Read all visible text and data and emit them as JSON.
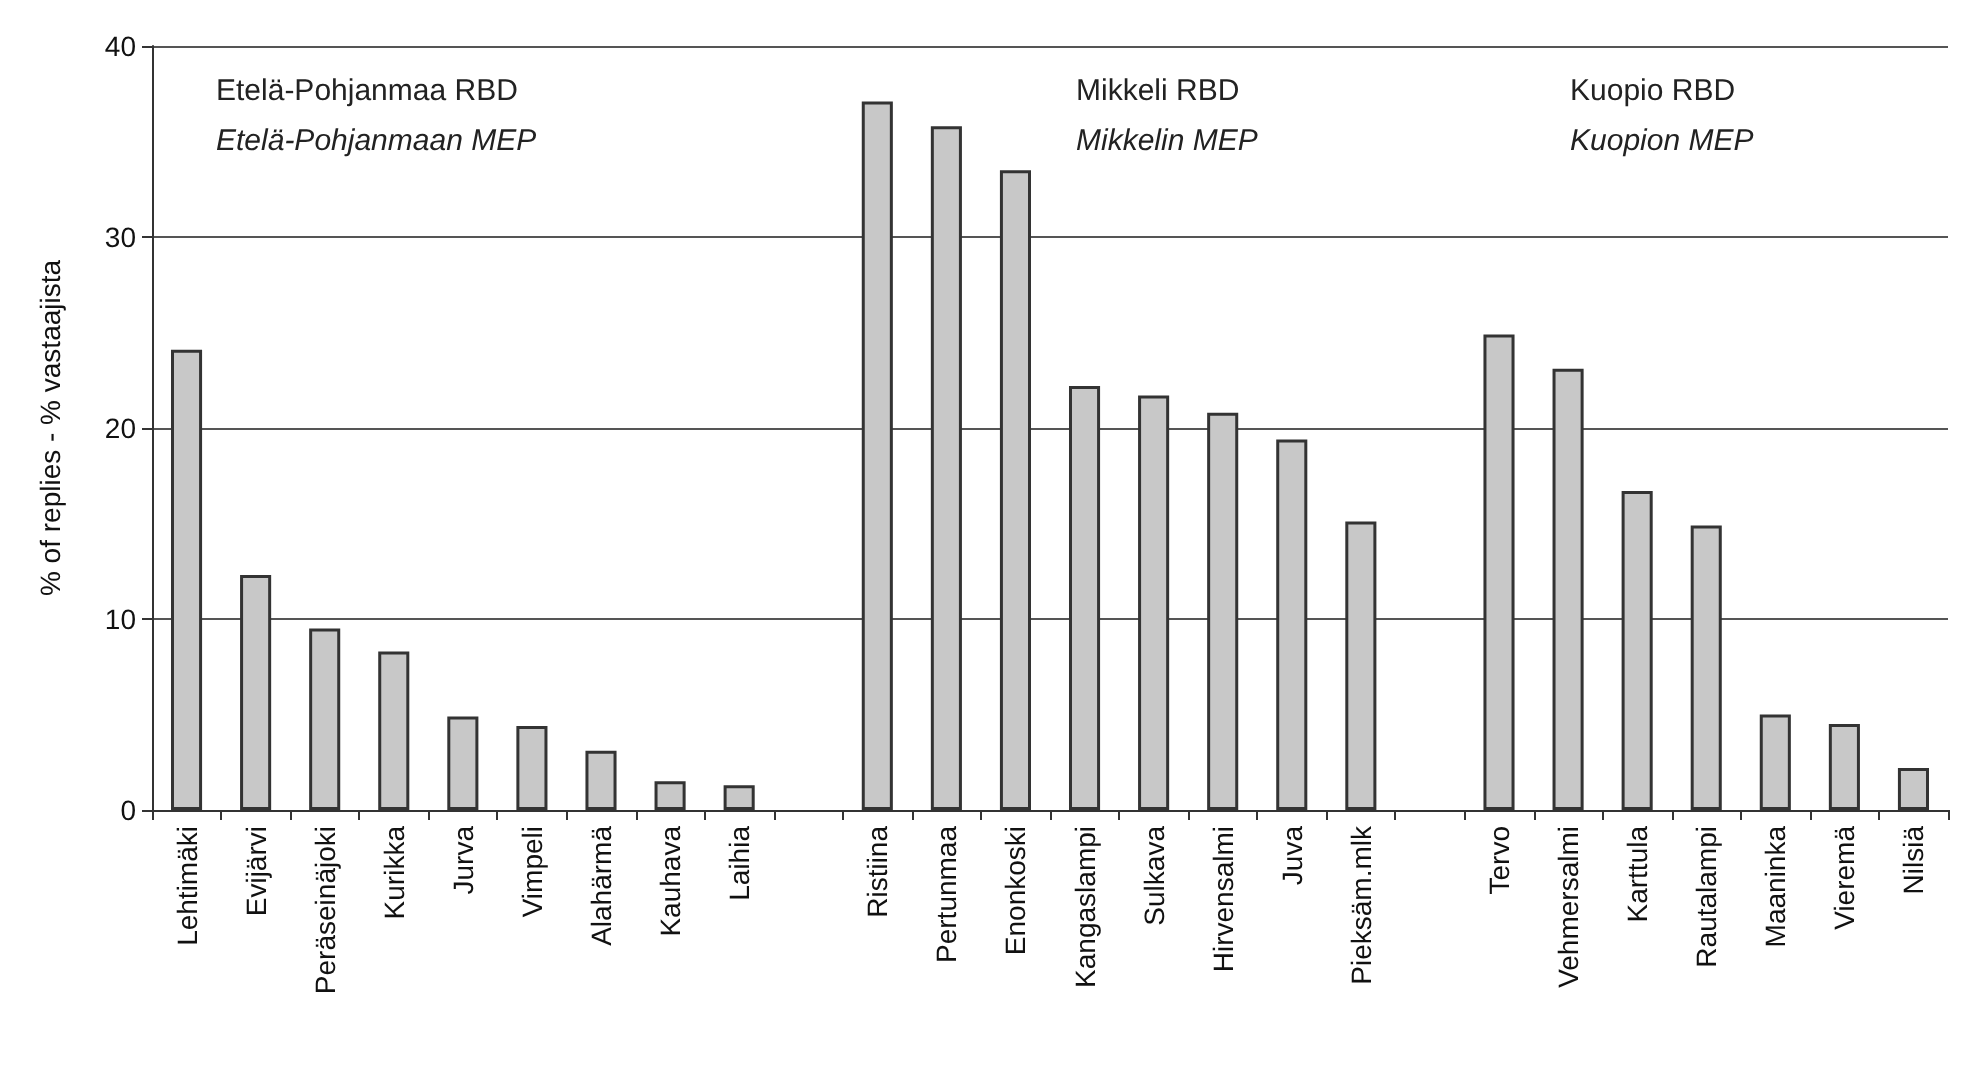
{
  "chart_data": {
    "type": "bar",
    "ylabel": "% of replies - % vastaajista",
    "categories": [
      "Lehtimäki",
      "Evijärvi",
      "Peräseinäjoki",
      "Kurikka",
      "Jurva",
      "Vimpeli",
      "Alahärmä",
      "Kauhava",
      "Laihia",
      null,
      "Ristiina",
      "Pertunmaa",
      "Enonkoski",
      "Kangaslampi",
      "Sulkava",
      "Hirvensalmi",
      "Juva",
      "Pieksäm.mlk",
      null,
      "Tervo",
      "Vehmersalmi",
      "Karttula",
      "Rautalampi",
      "Maaninka",
      "Vieremä",
      "Nilsiä"
    ],
    "values": [
      24.1,
      12.3,
      9.5,
      8.3,
      4.9,
      4.4,
      3.1,
      1.5,
      1.3,
      null,
      37.1,
      35.8,
      33.5,
      22.2,
      21.7,
      20.8,
      19.4,
      15.1,
      null,
      24.9,
      23.1,
      16.7,
      14.9,
      5.0,
      4.5,
      2.2
    ],
    "color": "#c8c8c8",
    "ylim": [
      0,
      40
    ],
    "yticks": [
      0,
      10,
      20,
      30,
      40
    ],
    "grid": "y",
    "annotations": [
      "Etelä-Pohjanmaa RBD",
      "Etelä-Pohjanmaan MEP",
      "Mikkeli RBD",
      "Mikkelin MEP",
      "Kuopio RBD",
      "Kuopion MEP"
    ]
  }
}
